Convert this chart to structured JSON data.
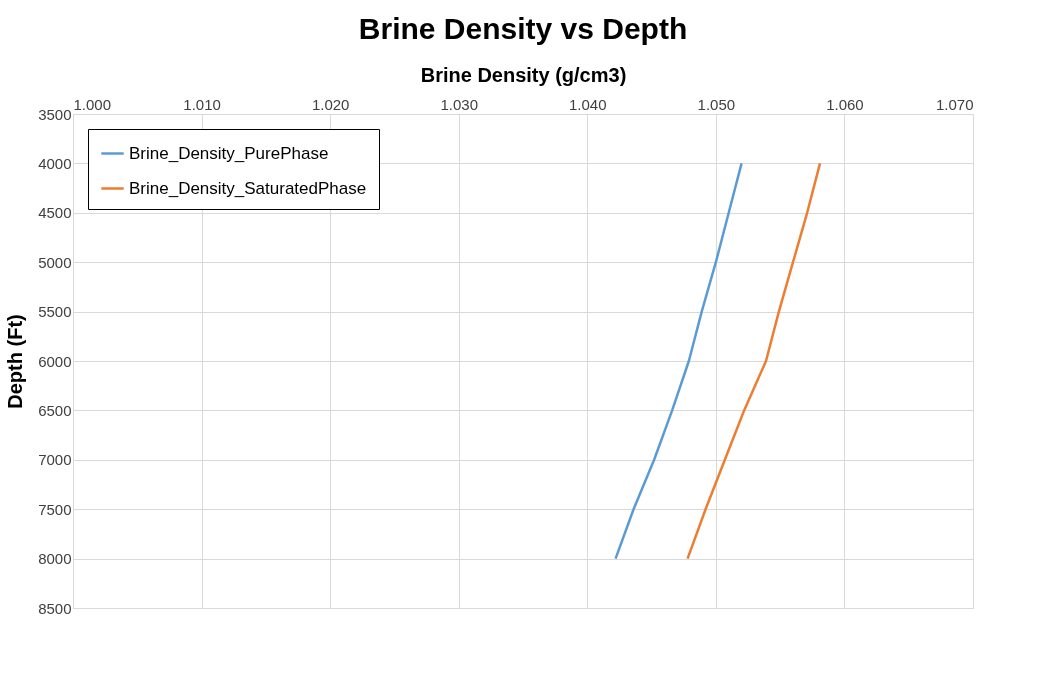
{
  "chart_data": {
    "type": "line",
    "title": "Brine Density vs Depth",
    "xlabel": "Brine Density (g/cm3)",
    "ylabel": "Depth (Ft)",
    "xlim": [
      1.0,
      1.07
    ],
    "xticks": [
      {
        "value": 1.0,
        "label": "1.000"
      },
      {
        "value": 1.01,
        "label": "1.010"
      },
      {
        "value": 1.02,
        "label": "1.020"
      },
      {
        "value": 1.03,
        "label": "1.030"
      },
      {
        "value": 1.04,
        "label": "1.040"
      },
      {
        "value": 1.05,
        "label": "1.050"
      },
      {
        "value": 1.06,
        "label": "1.060"
      },
      {
        "value": 1.07,
        "label": "1.070"
      }
    ],
    "ylim": [
      8500,
      3500
    ],
    "yticks": [
      3500,
      4000,
      4500,
      5000,
      5500,
      6000,
      6500,
      7000,
      7500,
      8000,
      8500
    ],
    "grid": true,
    "legend": "top left",
    "marker": "none",
    "line_style": "solid",
    "series": [
      {
        "name": "Brine_Density_PurePhase",
        "color": "#5b9bd5",
        "x": [
          1.052,
          1.051,
          1.05,
          1.0489,
          1.0479,
          1.0466,
          1.0452,
          1.0436,
          1.0422
        ],
        "values": [
          4000,
          4500,
          5000,
          5500,
          6000,
          6500,
          7000,
          7500,
          8000
        ]
      },
      {
        "name": "Brine_Density_SaturatedPhase",
        "color": "#ed7d31",
        "x": [
          1.0581,
          1.0571,
          1.056,
          1.0549,
          1.0539,
          1.0522,
          1.0507,
          1.0492,
          1.0478
        ],
        "values": [
          4000,
          4500,
          5000,
          5500,
          6000,
          6500,
          7000,
          7500,
          8000
        ]
      }
    ]
  }
}
